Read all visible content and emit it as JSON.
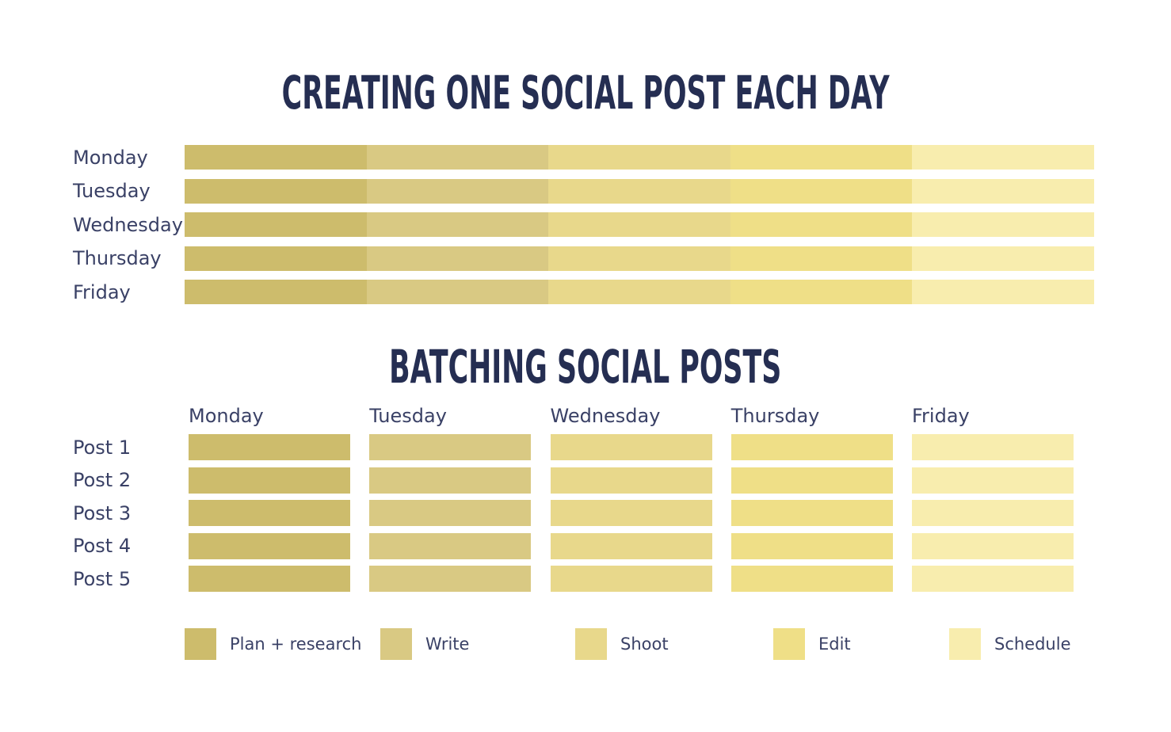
{
  "page": {
    "background": "#FFFFFF",
    "title_color": "#252E52",
    "text_color": "#3A4166"
  },
  "palette": {
    "plan": "#CDBC6C",
    "write": "#D9C983",
    "shoot": "#E8D88B",
    "edit": "#EFDF87",
    "schedule": "#F8EDAE"
  },
  "chart1": {
    "title": "CREATING ONE SOCIAL POST EACH DAY",
    "rows": [
      "Monday",
      "Tuesday",
      "Wednesday",
      "Thursday",
      "Friday"
    ],
    "stages_in_order": [
      "Plan + research",
      "Write",
      "Shoot",
      "Edit",
      "Schedule"
    ]
  },
  "chart2": {
    "title": "BATCHING SOCIAL POSTS",
    "columns": [
      "Monday",
      "Tuesday",
      "Wednesday",
      "Thursday",
      "Friday"
    ],
    "rows": [
      "Post 1",
      "Post 2",
      "Post 3",
      "Post 4",
      "Post 5"
    ]
  },
  "legend": {
    "items": [
      {
        "label": "Plan + research",
        "color": "#CDBC6C"
      },
      {
        "label": "Write",
        "color": "#D9C983"
      },
      {
        "label": "Shoot",
        "color": "#E8D88B"
      },
      {
        "label": "Edit",
        "color": "#EFDF87"
      },
      {
        "label": "Schedule",
        "color": "#F8EDAE"
      }
    ]
  },
  "chart_data": [
    {
      "type": "bar",
      "variant": "horizontal-stacked",
      "title": "CREATING ONE SOCIAL POST EACH DAY",
      "categories": [
        "Monday",
        "Tuesday",
        "Wednesday",
        "Thursday",
        "Friday"
      ],
      "series": [
        {
          "name": "Plan + research",
          "color": "#CDBC6C",
          "values": [
            20,
            20,
            20,
            20,
            20
          ]
        },
        {
          "name": "Write",
          "color": "#D9C983",
          "values": [
            20,
            20,
            20,
            20,
            20
          ]
        },
        {
          "name": "Shoot",
          "color": "#E8D88B",
          "values": [
            20,
            20,
            20,
            20,
            20
          ]
        },
        {
          "name": "Edit",
          "color": "#EFDF87",
          "values": [
            20,
            20,
            20,
            20,
            20
          ]
        },
        {
          "name": "Schedule",
          "color": "#F8EDAE",
          "values": [
            20,
            20,
            20,
            20,
            20
          ]
        }
      ],
      "unit": "percent of day",
      "xlim": [
        0,
        100
      ],
      "grid": false,
      "legend_position": "bottom-shared",
      "note": "Every weekday bar is split into five equal task segments (plan, write, shoot, edit, schedule each day)."
    },
    {
      "type": "heatmap",
      "title": "BATCHING SOCIAL POSTS",
      "x_categories": [
        "Monday",
        "Tuesday",
        "Wednesday",
        "Thursday",
        "Friday"
      ],
      "y_categories": [
        "Post 1",
        "Post 2",
        "Post 3",
        "Post 4",
        "Post 5"
      ],
      "cells": [
        [
          "Plan + research",
          "Write",
          "Shoot",
          "Edit",
          "Schedule"
        ],
        [
          "Plan + research",
          "Write",
          "Shoot",
          "Edit",
          "Schedule"
        ],
        [
          "Plan + research",
          "Write",
          "Shoot",
          "Edit",
          "Schedule"
        ],
        [
          "Plan + research",
          "Write",
          "Shoot",
          "Edit",
          "Schedule"
        ],
        [
          "Plan + research",
          "Write",
          "Shoot",
          "Edit",
          "Schedule"
        ]
      ],
      "cell_colors_by_column": [
        "#CDBC6C",
        "#D9C983",
        "#E8D88B",
        "#EFDF87",
        "#F8EDAE"
      ],
      "grid": false,
      "legend_position": "bottom-shared",
      "note": "Each day is devoted to one task stage applied across all five posts."
    }
  ]
}
